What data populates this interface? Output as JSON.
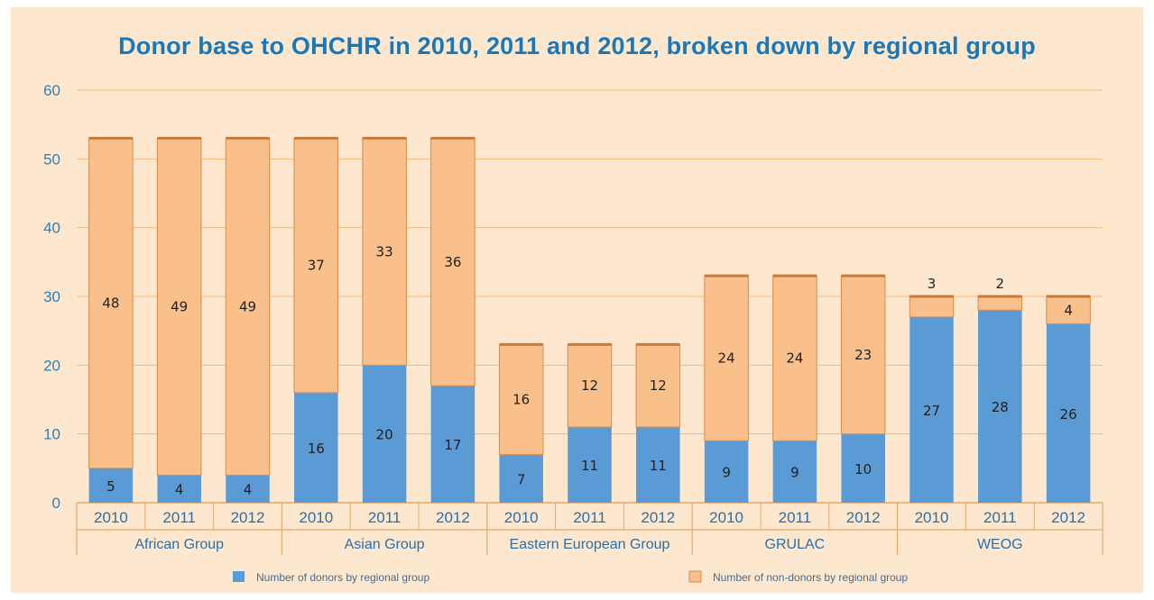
{
  "chart_data": {
    "type": "bar",
    "stacked": true,
    "title": "Donor base to OHCHR in 2010, 2011 and 2012, broken down by regional group",
    "ylim": [
      0,
      60
    ],
    "yticks": [
      0,
      10,
      20,
      30,
      40,
      50,
      60
    ],
    "grid": true,
    "legend_position": "bottom",
    "groups": [
      {
        "name": "African Group",
        "years": [
          "2010",
          "2011",
          "2012"
        ],
        "donors": [
          5,
          4,
          4
        ],
        "non_donors": [
          48,
          49,
          49
        ]
      },
      {
        "name": "Asian Group",
        "years": [
          "2010",
          "2011",
          "2012"
        ],
        "donors": [
          16,
          20,
          17
        ],
        "non_donors": [
          37,
          33,
          36
        ]
      },
      {
        "name": "Eastern European Group",
        "years": [
          "2010",
          "2011",
          "2012"
        ],
        "donors": [
          7,
          11,
          11
        ],
        "non_donors": [
          16,
          12,
          12
        ]
      },
      {
        "name": "GRULAC",
        "years": [
          "2010",
          "2011",
          "2012"
        ],
        "donors": [
          9,
          9,
          10
        ],
        "non_donors": [
          24,
          24,
          23
        ]
      },
      {
        "name": "WEOG",
        "years": [
          "2010",
          "2011",
          "2012"
        ],
        "donors": [
          27,
          28,
          26
        ],
        "non_donors": [
          3,
          2,
          4
        ]
      }
    ],
    "series": [
      {
        "name": "Number of donors by regional group",
        "color": "#5b9bd5"
      },
      {
        "name": "Number of non-donors by regional group",
        "color": "#f9c08c"
      }
    ]
  },
  "colors": {
    "background": "#fde8cf",
    "title": "#1b78b8",
    "gridline": "#f2b77a",
    "donor": "#5b9bd5",
    "non_donor": "#f9c08c",
    "axis_text": "#2a7fc0"
  }
}
